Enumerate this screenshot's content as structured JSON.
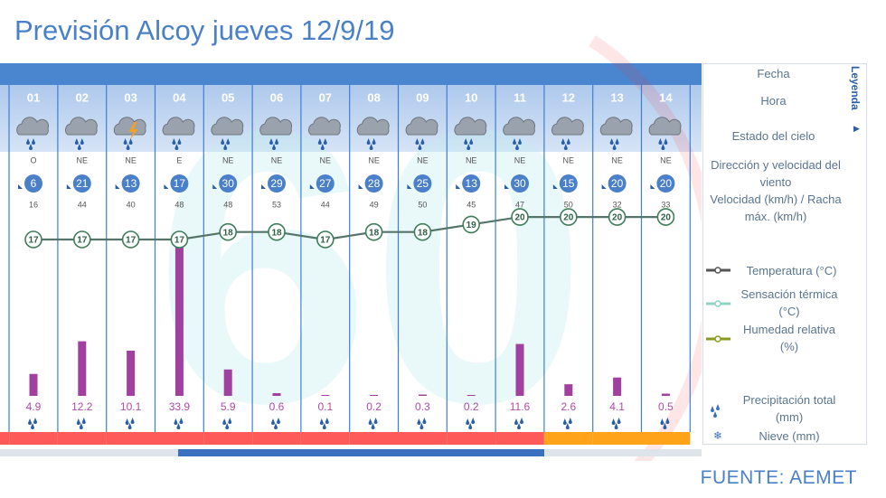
{
  "title": "Previsión Alcoy jueves 12/9/19",
  "source": "FUENTE: AEMET",
  "watermark": "60",
  "legend": {
    "title": "Leyenda",
    "items": [
      "Fecha",
      "Hora",
      "Estado del cielo",
      "Dirección y velocidad del viento",
      "Velocidad (km/h) / Racha máx. (km/h)",
      "Temperatura (°C)",
      "Sensación térmica (°C)",
      "Humedad relativa (%)",
      "Precipitación total (mm)",
      "Nieve (mm)"
    ]
  },
  "forecast": {
    "hours": [
      "01",
      "02",
      "03",
      "04",
      "05",
      "06",
      "07",
      "08",
      "09",
      "10",
      "11",
      "12",
      "13",
      "14"
    ],
    "wind_direction": [
      "O",
      "NE",
      "NE",
      "E",
      "NE",
      "NE",
      "NE",
      "NE",
      "NE",
      "NE",
      "NE",
      "NE",
      "NE",
      "NE"
    ],
    "wind_speed": [
      6,
      21,
      13,
      17,
      30,
      29,
      27,
      28,
      25,
      13,
      30,
      15,
      20,
      20
    ],
    "gust": [
      16,
      44,
      40,
      48,
      48,
      53,
      44,
      49,
      50,
      45,
      47,
      50,
      32,
      33
    ],
    "temperature": [
      17,
      17,
      17,
      17,
      18,
      18,
      17,
      18,
      18,
      19,
      20,
      20,
      20,
      20
    ],
    "precipitation": [
      4.9,
      12.2,
      10.1,
      33.9,
      5.9,
      0.6,
      0.1,
      0.2,
      0.3,
      0.2,
      11.6,
      2.6,
      4.1,
      0.5
    ]
  }
}
